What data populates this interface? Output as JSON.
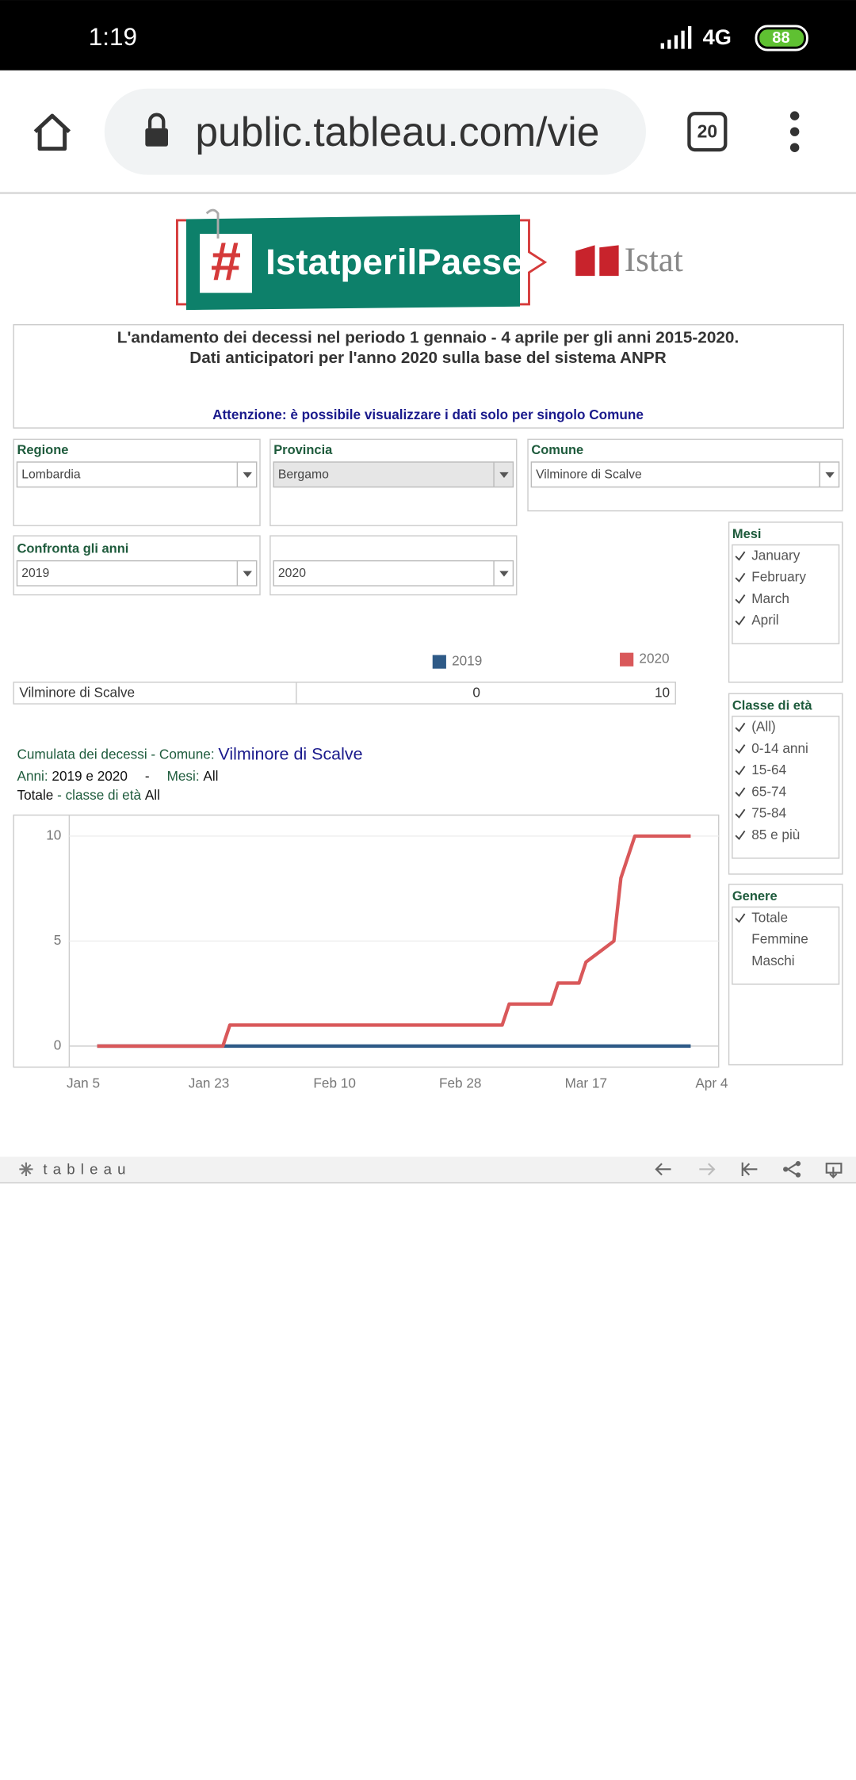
{
  "status_bar": {
    "time": "1:19",
    "network": "4G",
    "battery": "88"
  },
  "browser": {
    "url": "public.tableau.com/vie",
    "tabs": "20"
  },
  "logo": {
    "hash": "#",
    "campaign": "IstatperilPaese",
    "brand": "Istat"
  },
  "header": {
    "title_lines": [
      "L'andamento dei decessi nel periodo 1 gennaio - 4 aprile per gli anni 2015-2020.",
      "Dati anticipatori per l'anno 2020 sulla base del sistema ANPR"
    ],
    "notice": "Attenzione: è possibile visualizzare i dati solo per singolo Comune"
  },
  "filters": [
    {
      "label": "Regione",
      "value": "Lombardia"
    },
    {
      "label": "Provincia",
      "value": "Bergamo"
    },
    {
      "label": "Comune",
      "value": "Vilminore di Scalve"
    }
  ],
  "compare": {
    "label": "Confronta gli anni",
    "values": [
      "2019",
      "2020"
    ]
  },
  "panels": [
    {
      "label": "Mesi",
      "items": [
        {
          "text": "January",
          "checked": true
        },
        {
          "text": "February",
          "checked": true
        },
        {
          "text": "March",
          "checked": true
        },
        {
          "text": "April",
          "checked": true
        }
      ]
    },
    {
      "label": "Classe di età",
      "items": [
        {
          "text": "(All)",
          "checked": true
        },
        {
          "text": "0-14 anni",
          "checked": true
        },
        {
          "text": "15-64",
          "checked": true
        },
        {
          "text": "65-74",
          "checked": true
        },
        {
          "text": "75-84",
          "checked": true
        },
        {
          "text": "85 e più",
          "checked": true
        }
      ]
    },
    {
      "label": "Genere",
      "items": [
        {
          "text": "Totale",
          "checked": true
        },
        {
          "text": "Femmine",
          "checked": false
        },
        {
          "text": "Maschi",
          "checked": false
        }
      ]
    }
  ],
  "summary": {
    "row_label": "Vilminore di Scalve",
    "values": [
      0,
      10
    ]
  },
  "chart_header": {
    "line1": [
      "Cumulata dei decessi -  Comune:",
      "Vilminore di Scalve"
    ],
    "line2": [
      "Anni:",
      "2019 e 2020",
      "-",
      "Mesi:",
      "All"
    ],
    "line3": [
      "Totale",
      "- classe di età",
      "All"
    ]
  },
  "chart_data": {
    "type": "line",
    "xlim": [
      "Jan 3",
      "Apr 5"
    ],
    "xticks": [
      "Jan 5",
      "Jan 23",
      "Feb 10",
      "Feb 28",
      "Mar 17",
      "Apr 4"
    ],
    "ylim": [
      -1,
      11
    ],
    "yticks": [
      0,
      5,
      10
    ],
    "grid": true,
    "series": [
      {
        "name": "2019",
        "color": "#2e5a87",
        "x": [
          "Jan 7",
          "Apr 1"
        ],
        "values": [
          0,
          0
        ]
      },
      {
        "name": "2020",
        "color": "#d9585a",
        "x": [
          "Jan 7",
          "Jan 25",
          "Jan 26",
          "Mar 5",
          "Mar 6",
          "Mar 12",
          "Mar 13",
          "Mar 16",
          "Mar 17",
          "Mar 21",
          "Mar 22",
          "Mar 24",
          "Apr 1"
        ],
        "values": [
          0,
          0,
          1,
          1,
          2,
          2,
          3,
          3,
          4,
          5,
          8,
          10,
          10
        ]
      }
    ]
  },
  "footer": {
    "brand": "tableau"
  }
}
